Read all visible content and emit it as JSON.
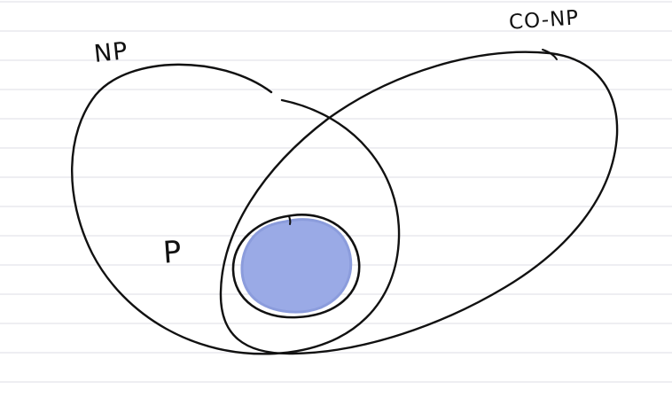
{
  "diagram": {
    "labels": {
      "np": "NP",
      "co_np": "CO-NP",
      "p": "P"
    },
    "colors": {
      "background": "#ffffff",
      "ruled_lines": "#dcdce6",
      "ink": "#111111",
      "p_fill": "#9aaae6"
    }
  }
}
